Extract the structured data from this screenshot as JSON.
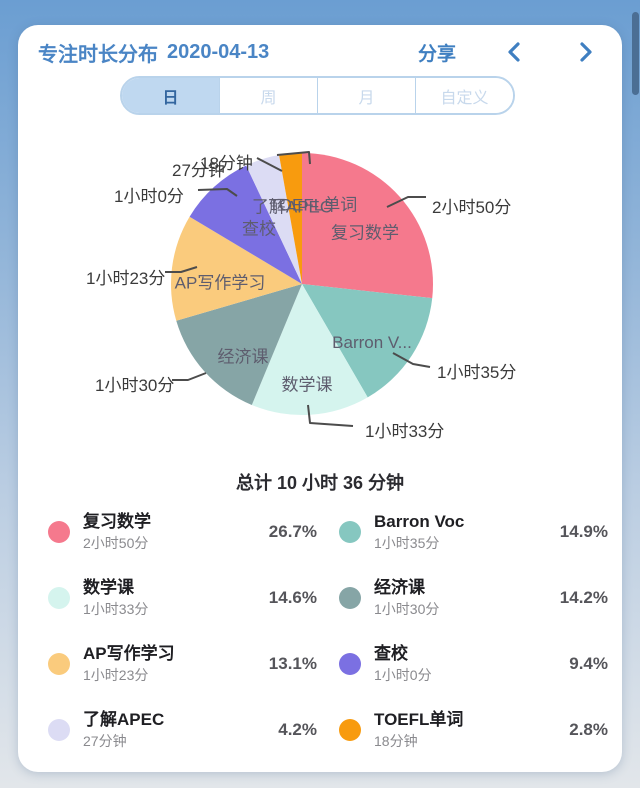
{
  "header": {
    "title": "专注时长分布",
    "date": "2020-04-13",
    "share_label": "分享",
    "prev_icon": "chevron-left",
    "next_icon": "chevron-right",
    "accent_color": "#4A85C5"
  },
  "tabs": {
    "selected_index": 0,
    "items": [
      {
        "label": "日"
      },
      {
        "label": "周"
      },
      {
        "label": "月"
      },
      {
        "label": "自定义"
      }
    ]
  },
  "chart_data": {
    "type": "pie",
    "title": "专注时长分布",
    "date": "2020-04-13",
    "total_label": "总计 10 小时 36 分钟",
    "start_angle_deg": -90,
    "direction": "clockwise",
    "legend_position": "bottom-grid-2col",
    "slices": [
      {
        "name": "复习数学",
        "pie_label": "复习数学",
        "duration": "2小时50分",
        "percent": 26.7,
        "percent_label": "26.7%",
        "color": "#F5798D"
      },
      {
        "name": "Barron Voc",
        "pie_label": "Barron V...",
        "duration": "1小时35分",
        "percent": 14.9,
        "percent_label": "14.9%",
        "color": "#86C7C0"
      },
      {
        "name": "数学课",
        "pie_label": "数学课",
        "duration": "1小时33分",
        "percent": 14.6,
        "percent_label": "14.6%",
        "color": "#D5F4EE"
      },
      {
        "name": "经济课",
        "pie_label": "经济课",
        "duration": "1小时30分",
        "percent": 14.2,
        "percent_label": "14.2%",
        "color": "#86A5A6"
      },
      {
        "name": "AP写作学习",
        "pie_label": "AP写作学习",
        "duration": "1小时23分",
        "percent": 13.1,
        "percent_label": "13.1%",
        "color": "#FACB7D"
      },
      {
        "name": "查校",
        "pie_label": "查校",
        "duration": "1小时0分",
        "percent": 9.4,
        "percent_label": "9.4%",
        "color": "#7B70E2"
      },
      {
        "name": "了解APEC",
        "pie_label": "了解APEC",
        "duration": "27分钟",
        "percent": 4.2,
        "percent_label": "4.2%",
        "color": "#DCDCF4"
      },
      {
        "name": "TOEFL单词",
        "pie_label": "TOEFL单词",
        "duration": "18分钟",
        "percent": 2.8,
        "percent_label": "2.8%",
        "color": "#F89B0E"
      }
    ]
  }
}
